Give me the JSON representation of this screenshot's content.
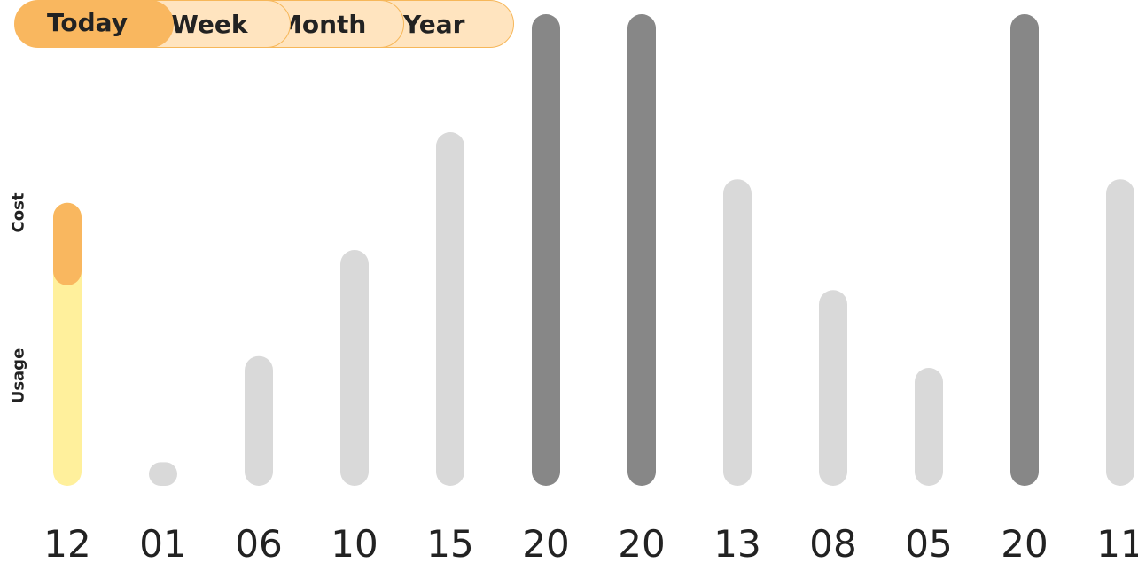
{
  "tabs": {
    "today": "Today",
    "week": "Week",
    "month": "Month",
    "year": "Year",
    "active": "today"
  },
  "series_labels": {
    "cost": "Cost",
    "usage": "Usage"
  },
  "chart_data": {
    "type": "bar",
    "categories": [
      "12",
      "01",
      "06",
      "10",
      "15",
      "20",
      "20",
      "13",
      "08",
      "05",
      "20",
      "11"
    ],
    "values": [
      12,
      1,
      5.5,
      10,
      15,
      20,
      20,
      13,
      8.3,
      5,
      20,
      13
    ],
    "highlight": {
      "index": 0,
      "cost_value": 3.5,
      "colors": {
        "usage": "#fff09c",
        "cost": "#f9b75f"
      }
    },
    "colors": {
      "default": "#d9d9d9",
      "max": "#878787"
    },
    "ylim": [
      0,
      20
    ],
    "grid": false,
    "legend": "none"
  }
}
